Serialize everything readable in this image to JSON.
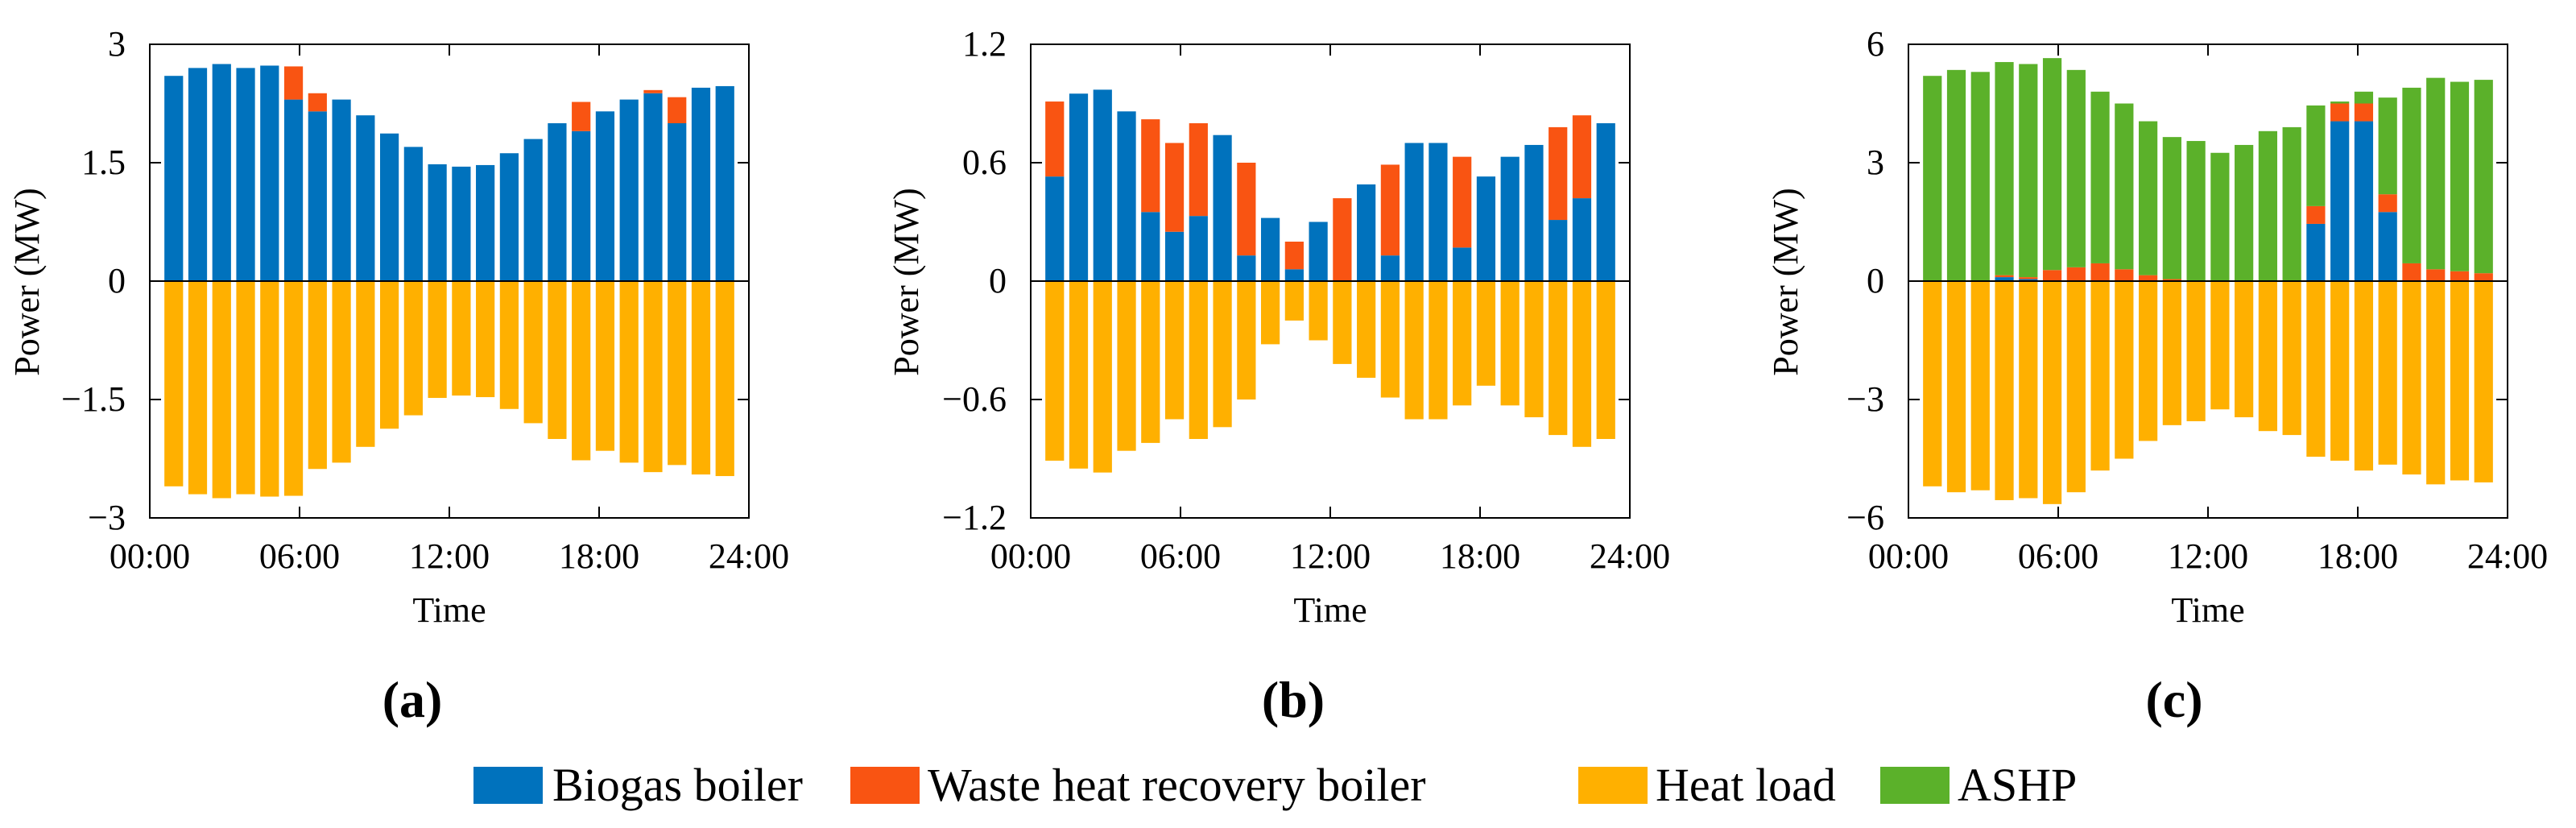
{
  "colors": {
    "biogas": "#0072BD",
    "waste": "#F95412",
    "heat": "#FFB000",
    "ashp": "#5BB12A",
    "axis": "#000000"
  },
  "legend": {
    "items": [
      {
        "key": "biogas",
        "label": "Biogas boiler"
      },
      {
        "key": "waste",
        "label": "Waste heat recovery boiler"
      },
      {
        "key": "heat",
        "label": "Heat load"
      },
      {
        "key": "ashp",
        "label": "ASHP"
      }
    ]
  },
  "chart_data": [
    {
      "type": "bar",
      "panel_label": "(a)",
      "title": "",
      "xlabel": "Time",
      "ylabel": "Power (MW)",
      "ylim": [
        -3,
        3
      ],
      "yticks": [
        "3",
        "1.5",
        "0",
        "−1.5",
        "−3"
      ],
      "ytick_values": [
        3,
        1.5,
        0,
        -1.5,
        -3
      ],
      "xticks": [
        "00:00",
        "06:00",
        "12:00",
        "18:00",
        "24:00"
      ],
      "xlim": [
        0,
        24
      ],
      "categories": [
        "1",
        "2",
        "3",
        "4",
        "5",
        "6",
        "7",
        "8",
        "9",
        "10",
        "11",
        "12",
        "13",
        "14",
        "15",
        "16",
        "17",
        "18",
        "19",
        "20",
        "21",
        "22",
        "23",
        "24"
      ],
      "stacked": true,
      "series": [
        {
          "name": "Biogas boiler",
          "key": "biogas",
          "values": [
            2.6,
            2.7,
            2.75,
            2.7,
            2.73,
            2.3,
            2.15,
            2.3,
            2.1,
            1.87,
            1.7,
            1.48,
            1.45,
            1.47,
            1.62,
            1.8,
            2.0,
            1.9,
            2.15,
            2.3,
            2.38,
            2.0,
            2.45,
            2.47
          ]
        },
        {
          "name": "Waste heat recovery boiler",
          "key": "waste",
          "values": [
            0,
            0,
            0,
            0,
            0,
            0.42,
            0.23,
            0,
            0,
            0,
            0,
            0,
            0,
            0,
            0,
            0,
            0,
            0.37,
            0,
            0,
            0.04,
            0.33,
            0,
            0
          ]
        },
        {
          "name": "Heat load",
          "key": "heat",
          "values": [
            -2.6,
            -2.7,
            -2.75,
            -2.7,
            -2.73,
            -2.72,
            -2.38,
            -2.3,
            -2.1,
            -1.87,
            -1.7,
            -1.48,
            -1.45,
            -1.47,
            -1.62,
            -1.8,
            -2.0,
            -2.27,
            -2.15,
            -2.3,
            -2.42,
            -2.33,
            -2.45,
            -2.47
          ]
        },
        {
          "name": "ASHP",
          "key": "ashp",
          "values": [
            0,
            0,
            0,
            0,
            0,
            0,
            0,
            0,
            0,
            0,
            0,
            0,
            0,
            0,
            0,
            0,
            0,
            0,
            0,
            0,
            0,
            0,
            0,
            0
          ]
        }
      ]
    },
    {
      "type": "bar",
      "panel_label": "(b)",
      "title": "",
      "xlabel": "Time",
      "ylabel": "Power (MW)",
      "ylim": [
        -1.2,
        1.2
      ],
      "yticks": [
        "1.2",
        "0.6",
        "0",
        "−0.6",
        "−1.2"
      ],
      "ytick_values": [
        1.2,
        0.6,
        0,
        -0.6,
        -1.2
      ],
      "xticks": [
        "00:00",
        "06:00",
        "12:00",
        "18:00",
        "24:00"
      ],
      "xlim": [
        0,
        24
      ],
      "categories": [
        "1",
        "2",
        "3",
        "4",
        "5",
        "6",
        "7",
        "8",
        "9",
        "10",
        "11",
        "12",
        "13",
        "14",
        "15",
        "16",
        "17",
        "18",
        "19",
        "20",
        "21",
        "22",
        "23",
        "24"
      ],
      "stacked": true,
      "series": [
        {
          "name": "Biogas boiler",
          "key": "biogas",
          "values": [
            0.53,
            0.95,
            0.97,
            0.86,
            0.35,
            0.25,
            0.33,
            0.74,
            0.13,
            0.32,
            0.06,
            0.3,
            0,
            0.49,
            0.13,
            0.7,
            0.7,
            0.17,
            0.53,
            0.63,
            0.69,
            0.31,
            0.42,
            0.8
          ]
        },
        {
          "name": "Waste heat recovery boiler",
          "key": "waste",
          "values": [
            0.38,
            0,
            0,
            0,
            0.47,
            0.45,
            0.47,
            0,
            0.47,
            0,
            0.14,
            0,
            0.42,
            0,
            0.46,
            0,
            0,
            0.46,
            0,
            0,
            0,
            0.47,
            0.42,
            0
          ]
        },
        {
          "name": "Heat load",
          "key": "heat",
          "values": [
            -0.91,
            -0.95,
            -0.97,
            -0.86,
            -0.82,
            -0.7,
            -0.8,
            -0.74,
            -0.6,
            -0.32,
            -0.2,
            -0.3,
            -0.42,
            -0.49,
            -0.59,
            -0.7,
            -0.7,
            -0.63,
            -0.53,
            -0.63,
            -0.69,
            -0.78,
            -0.84,
            -0.8
          ]
        },
        {
          "name": "ASHP",
          "key": "ashp",
          "values": [
            0,
            0,
            0,
            0,
            0,
            0,
            0,
            0,
            0,
            0,
            0,
            0,
            0,
            0,
            0,
            0,
            0,
            0,
            0,
            0,
            0,
            0,
            0,
            0
          ]
        }
      ]
    },
    {
      "type": "bar",
      "panel_label": "(c)",
      "title": "",
      "xlabel": "Time",
      "ylabel": "Power (MW)",
      "ylim": [
        -6,
        6
      ],
      "yticks": [
        "6",
        "3",
        "0",
        "−3",
        "−6"
      ],
      "ytick_values": [
        6,
        3,
        0,
        -3,
        -6
      ],
      "xticks": [
        "00:00",
        "06:00",
        "12:00",
        "18:00",
        "24:00"
      ],
      "xlim": [
        0,
        24
      ],
      "categories": [
        "1",
        "2",
        "3",
        "4",
        "5",
        "6",
        "7",
        "8",
        "9",
        "10",
        "11",
        "12",
        "13",
        "14",
        "15",
        "16",
        "17",
        "18",
        "19",
        "20",
        "21",
        "22",
        "23",
        "24"
      ],
      "stacked": true,
      "series": [
        {
          "name": "Biogas boiler",
          "key": "biogas",
          "values": [
            0,
            0,
            0,
            0.1,
            0.05,
            0,
            0,
            0,
            0,
            0,
            0,
            0,
            0,
            0,
            0,
            0,
            1.45,
            4.05,
            4.05,
            1.75,
            0,
            0,
            0,
            0
          ]
        },
        {
          "name": "Waste heat recovery boiler",
          "key": "waste",
          "values": [
            0,
            0,
            0,
            0.05,
            0.05,
            0.28,
            0.35,
            0.45,
            0.3,
            0.15,
            0.05,
            0,
            0,
            0,
            0,
            0,
            0.45,
            0.45,
            0.45,
            0.45,
            0.45,
            0.3,
            0.25,
            0.2
          ]
        },
        {
          "name": "Heat load",
          "key": "heat",
          "values": [
            -5.2,
            -5.35,
            -5.3,
            -5.55,
            -5.5,
            -5.65,
            -5.35,
            -4.8,
            -4.5,
            -4.05,
            -3.65,
            -3.55,
            -3.25,
            -3.45,
            -3.8,
            -3.9,
            -4.45,
            -4.55,
            -4.8,
            -4.65,
            -4.9,
            -5.15,
            -5.05,
            -5.1
          ]
        },
        {
          "name": "ASHP",
          "key": "ashp",
          "values": [
            5.2,
            5.35,
            5.3,
            5.4,
            5.4,
            5.37,
            5.0,
            4.35,
            4.2,
            3.9,
            3.6,
            3.55,
            3.25,
            3.45,
            3.8,
            3.9,
            2.55,
            0.05,
            0.3,
            2.45,
            4.45,
            4.85,
            4.8,
            4.9
          ]
        }
      ]
    }
  ]
}
